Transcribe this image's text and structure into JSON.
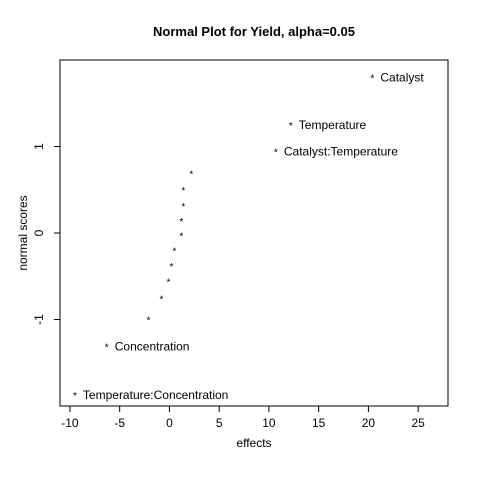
{
  "chart_data": {
    "type": "scatter",
    "title": "Normal Plot for Yield, alpha=0.05",
    "xlabel": "effects",
    "ylabel": "normal scores",
    "xlim": [
      -11,
      28
    ],
    "ylim": [
      -2.0,
      2.0
    ],
    "xticks": [
      -10,
      -5,
      0,
      5,
      10,
      15,
      20,
      25
    ],
    "yticks": [
      -1,
      0,
      1
    ],
    "marker": "*",
    "grid": false,
    "points": [
      {
        "x": -9.5,
        "y": -1.87,
        "label": "Temperature:Concentration"
      },
      {
        "x": -6.3,
        "y": -1.31,
        "label": "Concentration"
      },
      {
        "x": -2.1,
        "y": -1.0,
        "label": ""
      },
      {
        "x": -0.8,
        "y": -0.76,
        "label": ""
      },
      {
        "x": -0.1,
        "y": -0.56,
        "label": ""
      },
      {
        "x": 0.2,
        "y": -0.38,
        "label": ""
      },
      {
        "x": 0.5,
        "y": -0.2,
        "label": ""
      },
      {
        "x": 1.2,
        "y": -0.03,
        "label": ""
      },
      {
        "x": 1.2,
        "y": 0.14,
        "label": ""
      },
      {
        "x": 1.4,
        "y": 0.31,
        "label": ""
      },
      {
        "x": 1.4,
        "y": 0.5,
        "label": ""
      },
      {
        "x": 2.2,
        "y": 0.69,
        "label": ""
      },
      {
        "x": 10.7,
        "y": 0.94,
        "label": "Catalyst:Temperature"
      },
      {
        "x": 12.2,
        "y": 1.25,
        "label": "Temperature"
      },
      {
        "x": 20.4,
        "y": 1.8,
        "label": "Catalyst"
      }
    ]
  }
}
